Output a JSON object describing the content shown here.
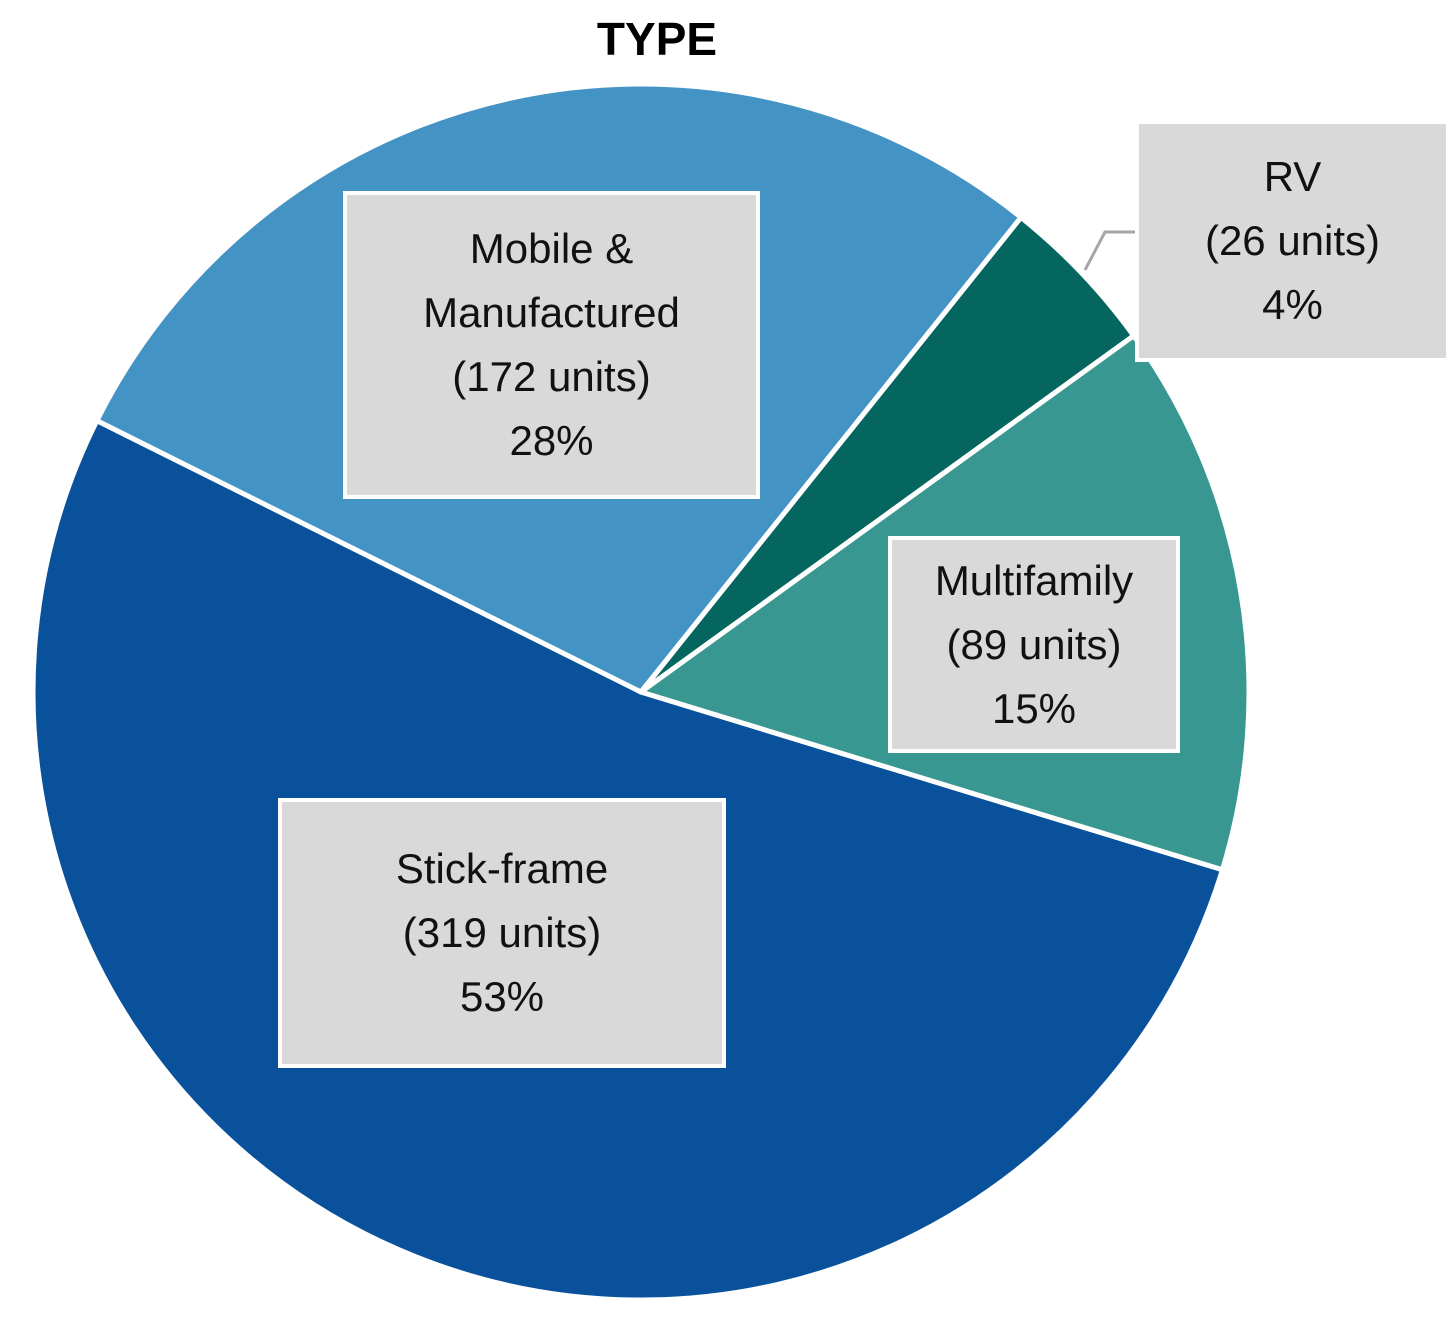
{
  "chart_data": {
    "type": "pie",
    "title": "TYPE",
    "categories": [
      "Stick-frame",
      "Mobile & Manufactured",
      "RV",
      "Multifamily"
    ],
    "values": [
      319,
      172,
      26,
      89
    ],
    "value_labels": [
      "(319 units)",
      "(172 units)",
      "(26 units)",
      "(89 units)"
    ],
    "percent_labels": [
      "53%",
      "28%",
      "4%",
      "15%"
    ],
    "colors": [
      "#0a519c",
      "#4493c5",
      "#04665e",
      "#389791"
    ]
  }
}
